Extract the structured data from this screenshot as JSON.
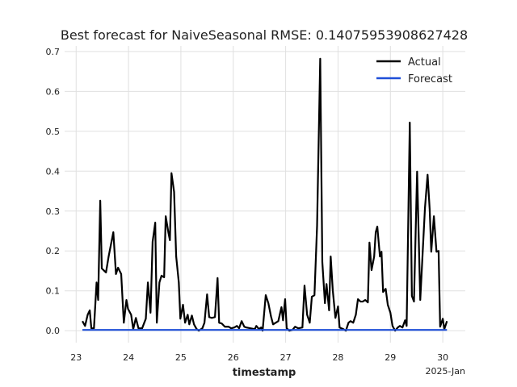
{
  "chart_data": {
    "type": "line",
    "title": "Best forecast for NaiveSeasonal RMSE: 0.14075953908627428",
    "xlabel": "timestamp",
    "x_offset_label": "2025-Jan",
    "xlim": [
      22.78,
      30.43
    ],
    "xticks": [
      23,
      24,
      25,
      26,
      27,
      28,
      29,
      30
    ],
    "ylim": [
      -0.03,
      0.714
    ],
    "yticks": [
      {
        "value": 0,
        "label": "0.0"
      },
      0.1,
      0.2,
      0.3,
      0.4,
      0.5,
      0.6,
      0.7
    ],
    "grid": true,
    "legend": "upper right",
    "series": [
      {
        "name": "Actual",
        "color": "#000000",
        "x": [
          23.12,
          23.17,
          23.22,
          23.26,
          23.29,
          23.34,
          23.39,
          23.42,
          23.46,
          23.49,
          23.57,
          23.62,
          23.71,
          23.76,
          23.8,
          23.86,
          23.91,
          23.96,
          23.99,
          24.05,
          24.09,
          24.14,
          24.19,
          24.26,
          24.33,
          24.37,
          24.42,
          24.46,
          24.51,
          24.54,
          24.59,
          24.63,
          24.68,
          24.71,
          24.76,
          24.79,
          24.82,
          24.87,
          24.91,
          24.96,
          24.99,
          25.04,
          25.08,
          25.13,
          25.16,
          25.21,
          25.25,
          25.3,
          25.34,
          25.41,
          25.45,
          25.5,
          25.54,
          25.59,
          25.65,
          25.7,
          25.73,
          25.78,
          25.84,
          25.91,
          25.96,
          26.02,
          26.07,
          26.11,
          26.16,
          26.21,
          26.25,
          26.33,
          26.41,
          26.44,
          26.49,
          26.53,
          26.56,
          26.62,
          26.67,
          26.72,
          26.76,
          26.81,
          26.86,
          26.92,
          26.95,
          26.99,
          27.02,
          27.07,
          27.13,
          27.18,
          27.24,
          27.32,
          27.36,
          27.41,
          27.46,
          27.5,
          27.55,
          27.6,
          27.66,
          27.7,
          27.75,
          27.78,
          27.83,
          27.86,
          27.9,
          27.95,
          28.0,
          28.03,
          28.1,
          28.15,
          28.2,
          28.24,
          28.29,
          28.34,
          28.38,
          28.43,
          28.47,
          28.52,
          28.57,
          28.6,
          28.64,
          28.69,
          28.72,
          28.75,
          28.8,
          28.83,
          28.86,
          28.91,
          28.95,
          29.0,
          29.04,
          29.09,
          29.14,
          29.18,
          29.23,
          29.28,
          29.31,
          29.37,
          29.41,
          29.45,
          29.51,
          29.57,
          29.62,
          29.66,
          29.71,
          29.75,
          29.78,
          29.83,
          29.88,
          29.92,
          29.95,
          30.0,
          30.03,
          30.08
        ],
        "values": [
          0.024,
          0.012,
          0.04,
          0.051,
          0.006,
          0.006,
          0.121,
          0.077,
          0.326,
          0.156,
          0.146,
          0.186,
          0.247,
          0.142,
          0.158,
          0.142,
          0.02,
          0.077,
          0.055,
          0.04,
          0.004,
          0.032,
          0.006,
          0.006,
          0.03,
          0.121,
          0.045,
          0.223,
          0.271,
          0.02,
          0.121,
          0.138,
          0.134,
          0.287,
          0.247,
          0.227,
          0.395,
          0.348,
          0.186,
          0.121,
          0.03,
          0.065,
          0.02,
          0.04,
          0.016,
          0.038,
          0.016,
          0.004,
          0,
          0.006,
          0.02,
          0.091,
          0.034,
          0.032,
          0.034,
          0.132,
          0.02,
          0.018,
          0.01,
          0.01,
          0.006,
          0.008,
          0.012,
          0.006,
          0.024,
          0.01,
          0.008,
          0.006,
          0.004,
          0.012,
          0.004,
          0.008,
          0,
          0.089,
          0.069,
          0.036,
          0.016,
          0.02,
          0.024,
          0.059,
          0.026,
          0.079,
          0.006,
          0,
          0.002,
          0.01,
          0.006,
          0.008,
          0.113,
          0.04,
          0.02,
          0.085,
          0.089,
          0.263,
          0.682,
          0.172,
          0.069,
          0.117,
          0.051,
          0.186,
          0.101,
          0.032,
          0.061,
          0.008,
          0.004,
          0,
          0.02,
          0.024,
          0.02,
          0.04,
          0.079,
          0.073,
          0.073,
          0.077,
          0.071,
          0.221,
          0.152,
          0.186,
          0.247,
          0.261,
          0.186,
          0.198,
          0.097,
          0.105,
          0.065,
          0.045,
          0.012,
          0,
          0.008,
          0.012,
          0.008,
          0.026,
          0.012,
          0.522,
          0.087,
          0.073,
          0.399,
          0.077,
          0.206,
          0.308,
          0.391,
          0.304,
          0.198,
          0.287,
          0.198,
          0.2,
          0.01,
          0.03,
          0.004,
          0.024
        ]
      },
      {
        "name": "Forecast",
        "color": "#1f4fd8",
        "x": [
          23.12,
          30.08
        ],
        "values": [
          0.002,
          0.002
        ]
      }
    ]
  }
}
